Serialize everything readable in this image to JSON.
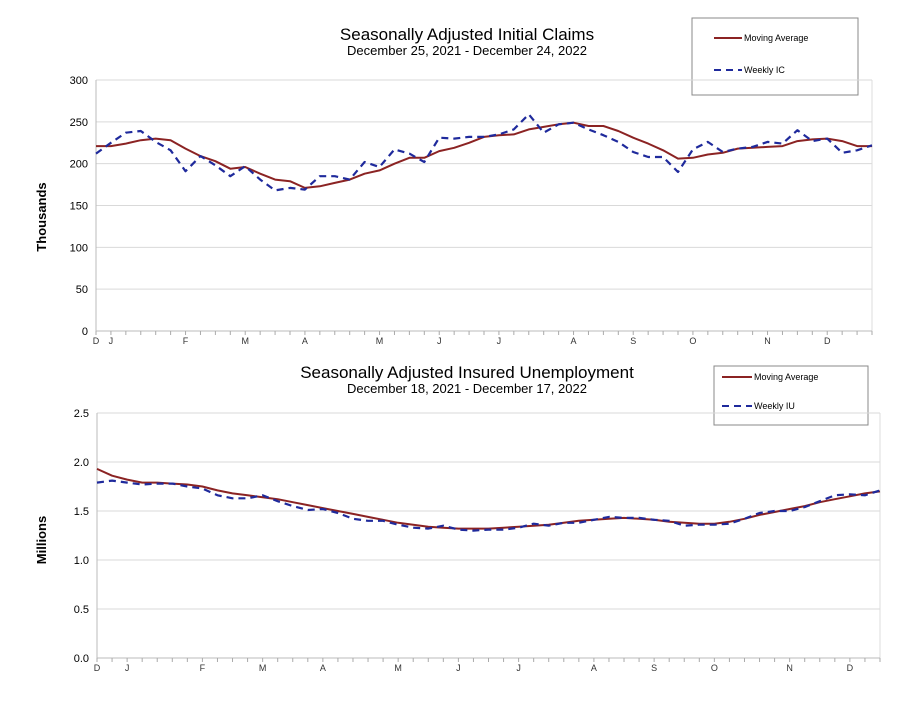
{
  "colors": {
    "moving_average": "#8b2323",
    "weekly": "#1f2a9c",
    "grid": "#d9d9d9"
  },
  "chart_data": [
    {
      "type": "line",
      "title": "Seasonally Adjusted Initial Claims",
      "subtitle": "December 25, 2021 - December 24, 2022",
      "ylabel": "Thousands",
      "ylim": [
        0,
        300
      ],
      "yticks": [
        "0",
        "50",
        "100",
        "150",
        "200",
        "250",
        "300"
      ],
      "grid": true,
      "legend_placement": "top-right",
      "month_labels": [
        {
          "label": "D",
          "week": 0
        },
        {
          "label": "J",
          "week": 1
        },
        {
          "label": "F",
          "week": 6
        },
        {
          "label": "M",
          "week": 10
        },
        {
          "label": "A",
          "week": 14
        },
        {
          "label": "M",
          "week": 19
        },
        {
          "label": "J",
          "week": 23
        },
        {
          "label": "J",
          "week": 27
        },
        {
          "label": "A",
          "week": 32
        },
        {
          "label": "S",
          "week": 36
        },
        {
          "label": "O",
          "week": 40
        },
        {
          "label": "N",
          "week": 45
        },
        {
          "label": "D",
          "week": 49
        }
      ],
      "series": [
        {
          "name": "Moving Average",
          "style": "solid",
          "values": [
            221,
            221,
            224,
            228,
            230,
            228,
            218,
            209,
            203,
            194,
            196,
            188,
            181,
            179,
            171,
            173,
            177,
            181,
            188,
            192,
            200,
            207,
            207,
            215,
            219,
            225,
            232,
            234,
            235,
            241,
            244,
            247,
            249,
            245,
            245,
            239,
            231,
            224,
            216,
            206,
            207,
            211,
            213,
            218,
            219,
            220,
            221,
            227,
            229,
            230,
            227,
            221,
            221
          ]
        },
        {
          "name": "Weekly IC",
          "style": "dashed",
          "values": [
            212,
            225,
            237,
            239,
            226,
            216,
            191,
            209,
            198,
            185,
            197,
            181,
            168,
            171,
            169,
            185,
            185,
            181,
            202,
            196,
            217,
            212,
            202,
            231,
            230,
            232,
            232,
            235,
            241,
            259,
            237,
            247,
            249,
            241,
            234,
            226,
            214,
            208,
            208,
            190,
            217,
            226,
            214,
            218,
            220,
            226,
            224,
            240,
            227,
            230,
            213,
            216,
            222
          ]
        }
      ]
    },
    {
      "type": "line",
      "title": "Seasonally Adjusted Insured Unemployment",
      "subtitle": "December 18, 2021 - December 17, 2022",
      "ylabel": "Millions",
      "ylim": [
        0,
        2.5
      ],
      "yticks": [
        "0.0",
        "0.5",
        "1.0",
        "1.5",
        "2.0",
        "2.5"
      ],
      "grid": true,
      "legend_placement": "top-right",
      "month_labels": [
        {
          "label": "D",
          "week": 0
        },
        {
          "label": "J",
          "week": 2
        },
        {
          "label": "F",
          "week": 7
        },
        {
          "label": "M",
          "week": 11
        },
        {
          "label": "A",
          "week": 15
        },
        {
          "label": "M",
          "week": 20
        },
        {
          "label": "J",
          "week": 24
        },
        {
          "label": "J",
          "week": 28
        },
        {
          "label": "A",
          "week": 33
        },
        {
          "label": "S",
          "week": 37
        },
        {
          "label": "O",
          "week": 41
        },
        {
          "label": "N",
          "week": 46
        },
        {
          "label": "D",
          "week": 50
        }
      ],
      "series": [
        {
          "name": "Moving Average",
          "style": "solid",
          "values": [
            1.93,
            1.86,
            1.82,
            1.79,
            1.79,
            1.78,
            1.77,
            1.75,
            1.71,
            1.68,
            1.66,
            1.64,
            1.62,
            1.59,
            1.56,
            1.53,
            1.5,
            1.47,
            1.44,
            1.41,
            1.38,
            1.36,
            1.34,
            1.33,
            1.32,
            1.32,
            1.32,
            1.33,
            1.34,
            1.35,
            1.36,
            1.38,
            1.4,
            1.41,
            1.42,
            1.43,
            1.42,
            1.41,
            1.39,
            1.38,
            1.37,
            1.37,
            1.39,
            1.42,
            1.46,
            1.49,
            1.52,
            1.55,
            1.59,
            1.62,
            1.65,
            1.68,
            1.7
          ]
        },
        {
          "name": "Weekly IU",
          "style": "dashed",
          "values": [
            1.79,
            1.81,
            1.79,
            1.77,
            1.78,
            1.78,
            1.75,
            1.73,
            1.66,
            1.63,
            1.63,
            1.66,
            1.6,
            1.55,
            1.51,
            1.52,
            1.48,
            1.42,
            1.4,
            1.4,
            1.36,
            1.33,
            1.32,
            1.35,
            1.31,
            1.3,
            1.31,
            1.31,
            1.33,
            1.37,
            1.35,
            1.38,
            1.38,
            1.41,
            1.44,
            1.43,
            1.43,
            1.41,
            1.4,
            1.35,
            1.36,
            1.36,
            1.37,
            1.42,
            1.48,
            1.5,
            1.5,
            1.54,
            1.6,
            1.66,
            1.67,
            1.66,
            1.71
          ]
        }
      ]
    }
  ]
}
